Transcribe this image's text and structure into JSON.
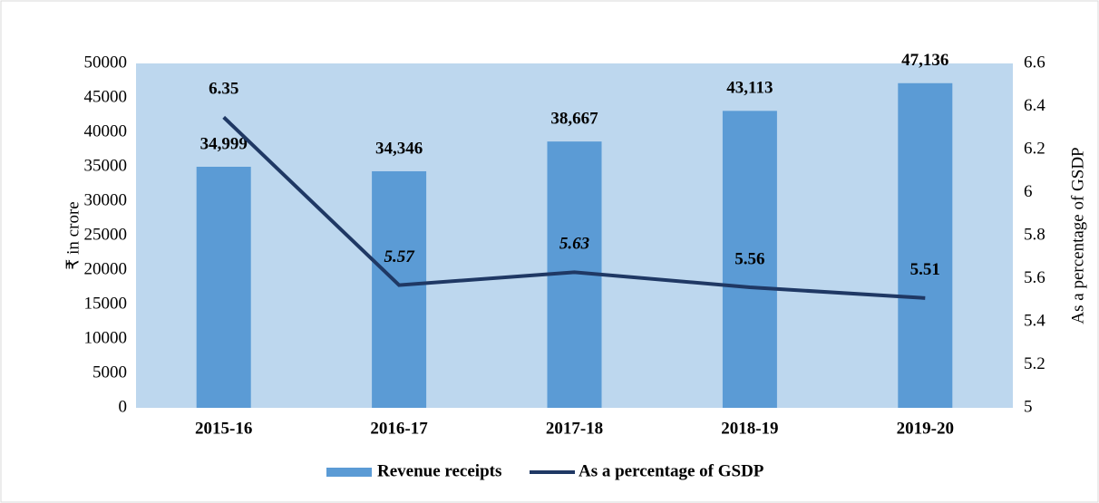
{
  "chart_data": {
    "type": "bar_line",
    "categories": [
      "2015-16",
      "2016-17",
      "2017-18",
      "2018-19",
      "2019-20"
    ],
    "series": [
      {
        "name": "Revenue receipts",
        "type": "bar",
        "color": "#5b9bd5",
        "values": [
          34999,
          34346,
          38667,
          43113,
          47136
        ],
        "value_labels": [
          "34,999",
          "34,346",
          "38,667",
          "43,113",
          "47,136"
        ]
      },
      {
        "name": "As a percentage of GSDP",
        "type": "line",
        "axis": "y2",
        "color": "#1f3864",
        "values": [
          6.35,
          5.57,
          5.63,
          5.56,
          5.51
        ]
      }
    ],
    "ylabel": "₹ in crore",
    "y2label": "As a percentage  of GSDP",
    "ylim": [
      0,
      50000
    ],
    "yticks": [
      0,
      5000,
      10000,
      15000,
      20000,
      25000,
      30000,
      35000,
      40000,
      45000,
      50000
    ],
    "y2lim": [
      5,
      6.6
    ],
    "y2ticks": [
      5,
      5.2,
      5.4,
      5.6,
      5.8,
      6,
      6.2,
      6.4,
      6.6
    ],
    "plot_background": "#bdd7ee",
    "legend": "bottom"
  }
}
